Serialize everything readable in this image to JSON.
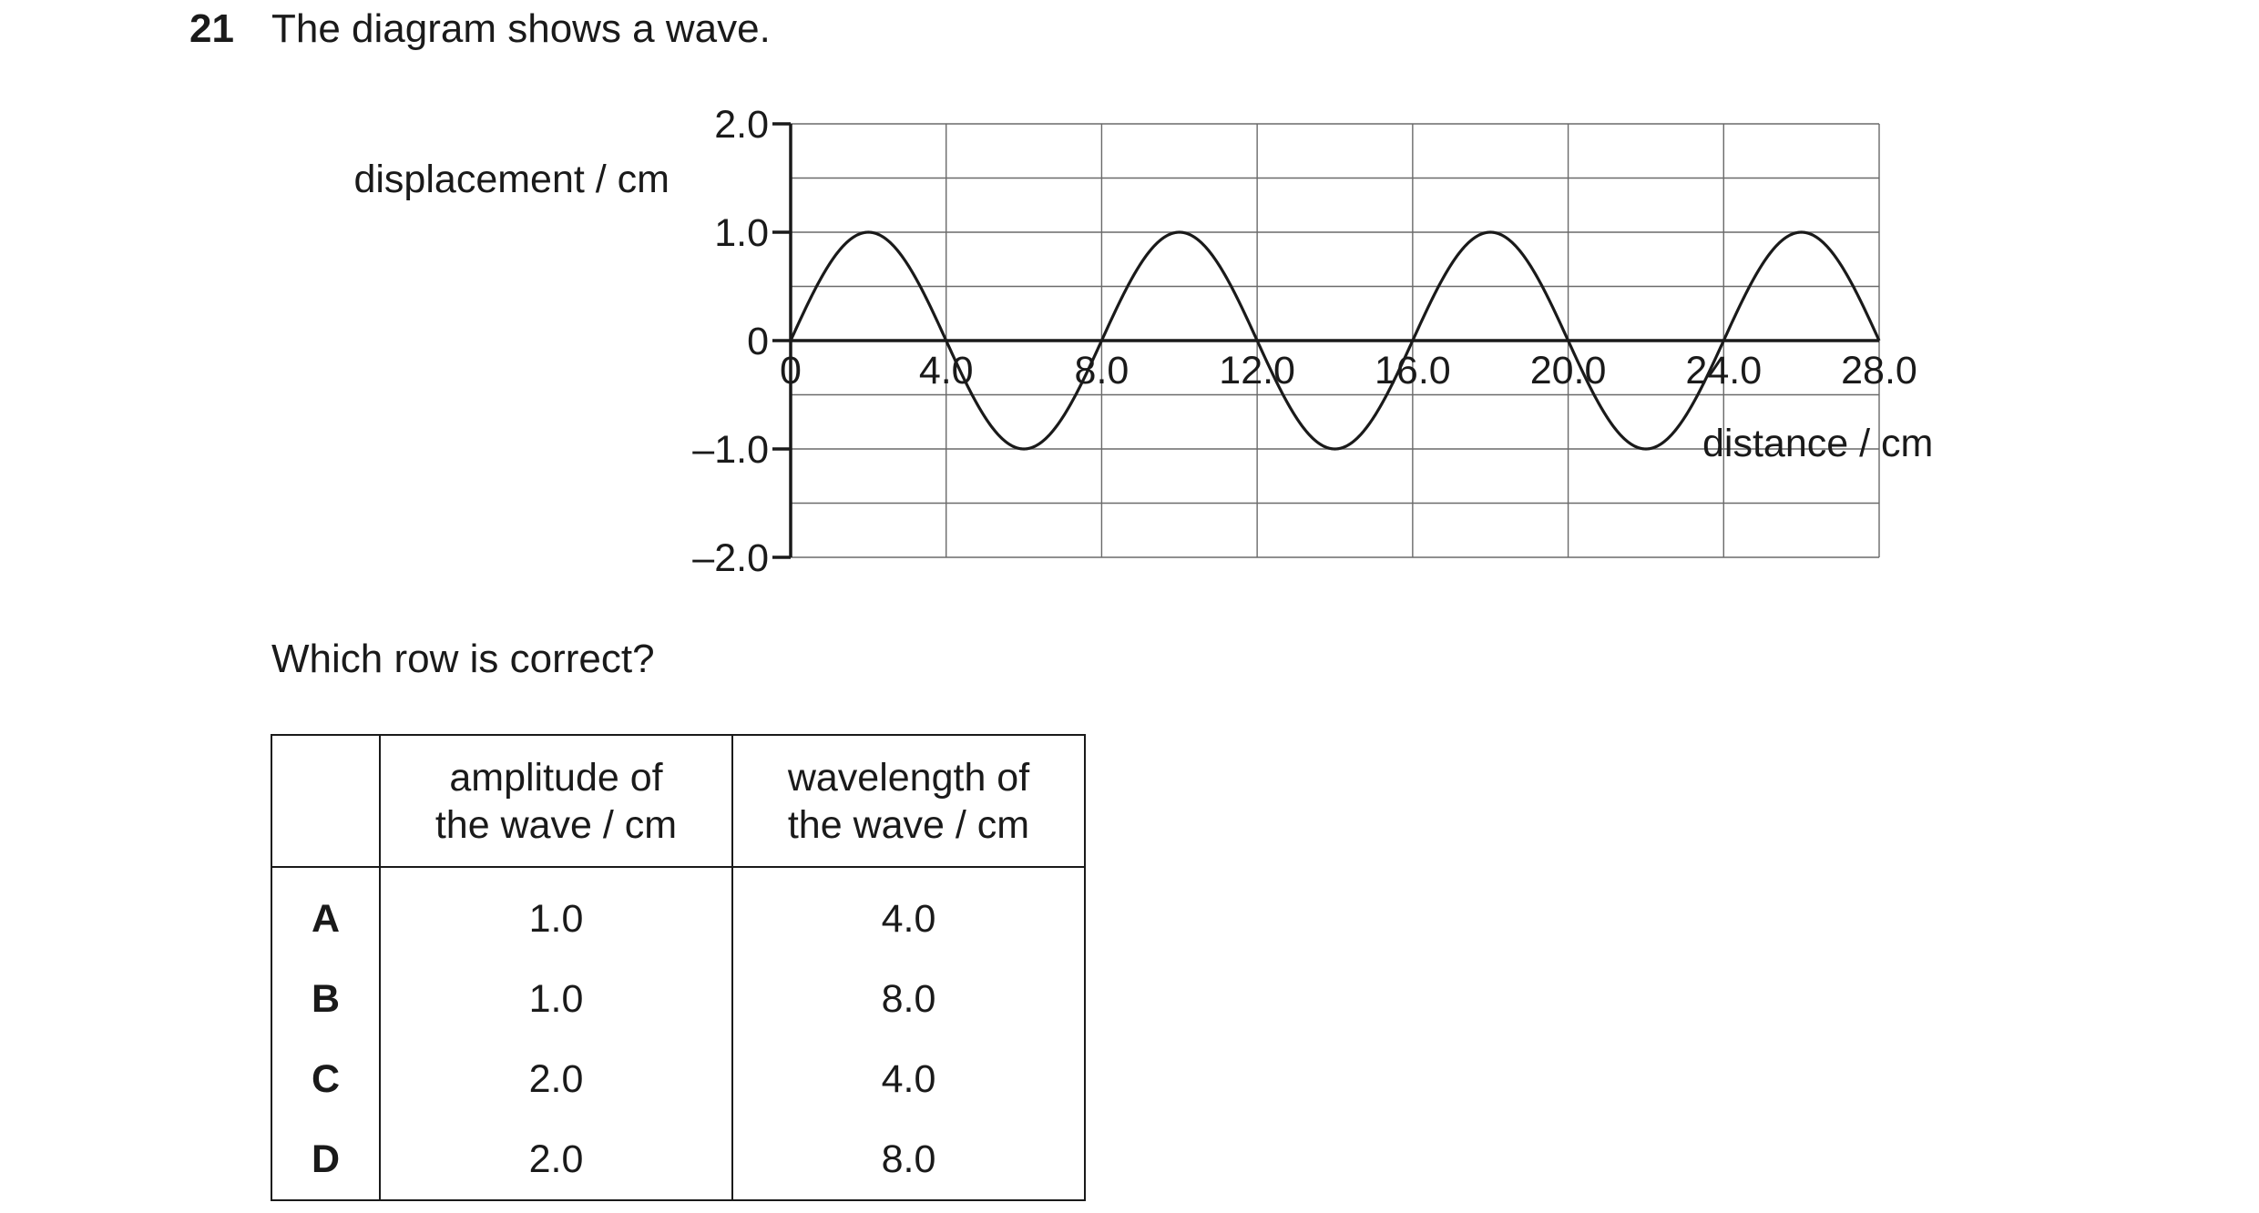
{
  "question": {
    "number": "21",
    "stem": "The diagram shows a wave.",
    "prompt": "Which row is correct?"
  },
  "chart_data": {
    "type": "line",
    "ylabel": "displacement / cm",
    "xlabel": "distance / cm",
    "xlim": [
      0,
      28.0
    ],
    "ylim": [
      -2.0,
      2.0
    ],
    "x_ticks": [
      "0",
      "4.0",
      "8.0",
      "12.0",
      "16.0",
      "20.0",
      "24.0",
      "28.0"
    ],
    "y_ticks": [
      "2.0",
      "1.0",
      "0",
      "–1.0",
      "–2.0"
    ],
    "grid": true,
    "series": [
      {
        "amplitude": 1.0,
        "wavelength": 8.0,
        "x_start": 0,
        "x_end": 28.0,
        "stroke": "#1a1a1a"
      }
    ]
  },
  "table": {
    "headers": [
      "",
      [
        "amplitude of",
        "the wave / cm"
      ],
      [
        "wavelength of",
        "the wave / cm"
      ]
    ],
    "rows": [
      {
        "letter": "A",
        "amplitude": "1.0",
        "wavelength": "4.0"
      },
      {
        "letter": "B",
        "amplitude": "1.0",
        "wavelength": "8.0"
      },
      {
        "letter": "C",
        "amplitude": "2.0",
        "wavelength": "4.0"
      },
      {
        "letter": "D",
        "amplitude": "2.0",
        "wavelength": "8.0"
      }
    ]
  }
}
